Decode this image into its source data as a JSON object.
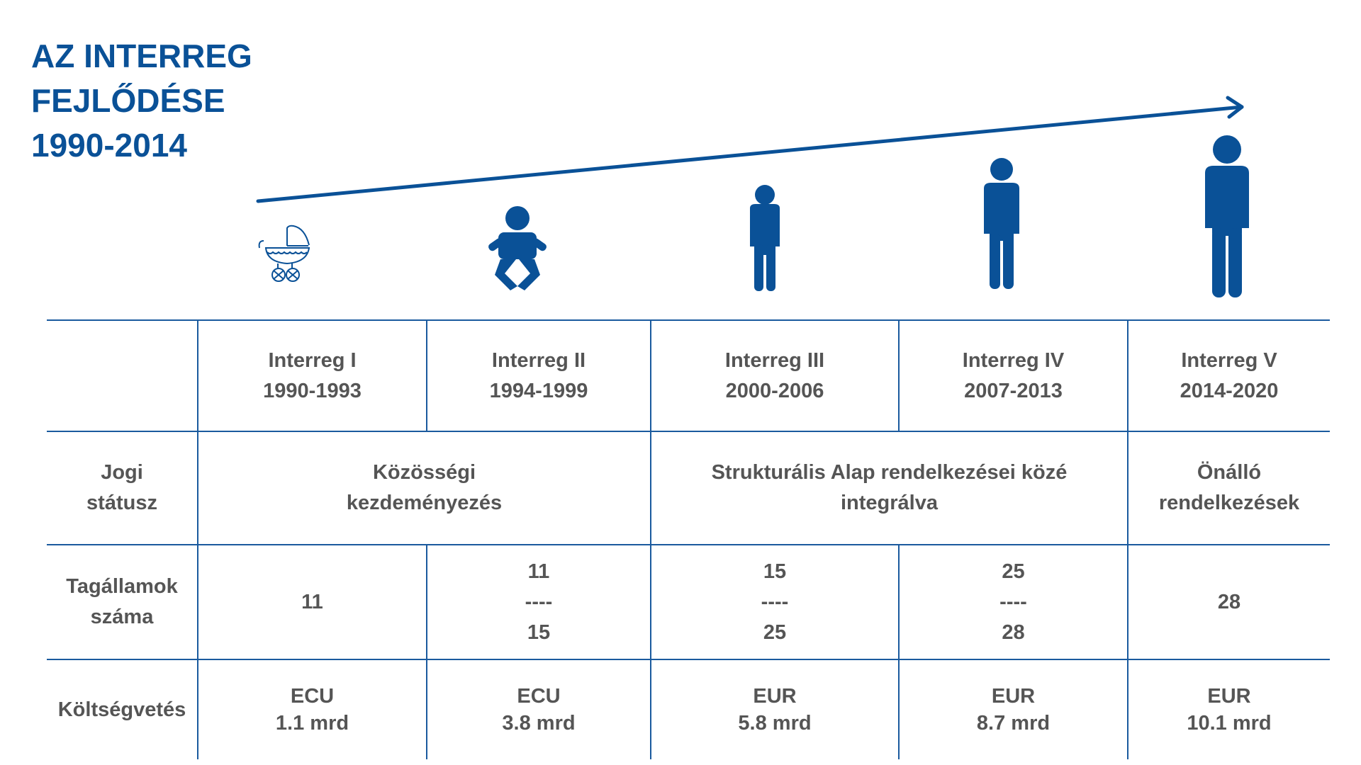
{
  "title": {
    "line1": "AZ INTERREG",
    "line2": "FEJLŐDÉSE",
    "line3": "1990-2014"
  },
  "colors": {
    "accent": "#0a5197",
    "text": "#555555",
    "line": "#1a5a9e"
  },
  "icons": [
    "stroller-icon",
    "baby-icon",
    "child-icon",
    "teen-icon",
    "adult-icon"
  ],
  "periods": [
    {
      "name": "Interreg I",
      "years": "1990-1993"
    },
    {
      "name": "Interreg II",
      "years": "1994-1999"
    },
    {
      "name": "Interreg III",
      "years": "2000-2006"
    },
    {
      "name": "Interreg IV",
      "years": "2007-2013"
    },
    {
      "name": "Interreg V",
      "years": "2014-2020"
    }
  ],
  "legal": {
    "label": [
      "Jogi",
      "státusz"
    ],
    "groups": [
      {
        "lines": [
          "Közösségi",
          "kezdeményezés"
        ]
      },
      {
        "lines": [
          "Strukturális Alap rendelkezései közé",
          "integrálva"
        ]
      },
      {
        "lines": [
          "Önálló",
          "rendelkezések"
        ]
      }
    ]
  },
  "members": {
    "label": [
      "Tagállamok",
      "száma"
    ],
    "values": [
      {
        "lines": [
          "11"
        ]
      },
      {
        "lines": [
          "11",
          "----",
          "15"
        ]
      },
      {
        "lines": [
          "15",
          "----",
          "25"
        ]
      },
      {
        "lines": [
          "25",
          "----",
          "28"
        ]
      },
      {
        "lines": [
          "28"
        ]
      }
    ]
  },
  "budget": {
    "label": "Költségvetés",
    "values": [
      {
        "currency": "ECU",
        "amount": "1.1 mrd"
      },
      {
        "currency": "ECU",
        "amount": "3.8 mrd"
      },
      {
        "currency": "EUR",
        "amount": "5.8 mrd"
      },
      {
        "currency": "EUR",
        "amount": "8.7 mrd"
      },
      {
        "currency": "EUR",
        "amount": "10.1 mrd"
      }
    ]
  }
}
